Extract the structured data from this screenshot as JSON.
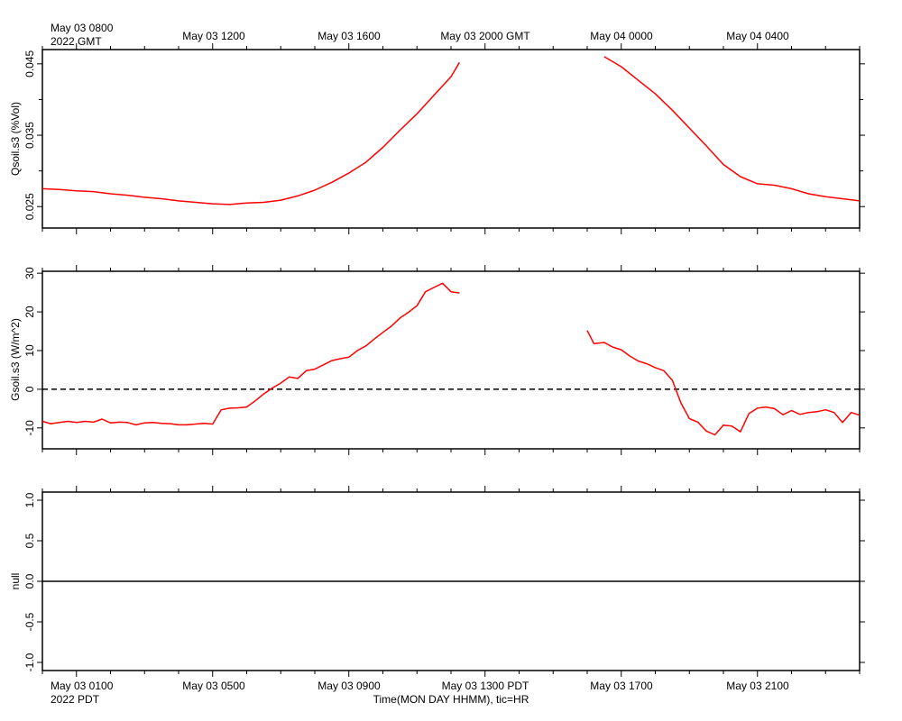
{
  "top_axis": {
    "first_label_lines": [
      "May 03 0800",
      "2022 GMT"
    ],
    "labels": [
      "May 03 1200",
      "May 03 1600",
      "May 03 2000 GMT",
      "May 04 0000",
      "May 04 0400"
    ]
  },
  "bottom_axis": {
    "first_label_lines": [
      "May 03 0100",
      "2022 PDT"
    ],
    "labels": [
      "May 03 0500",
      "May 03 0900",
      "May 03 1300 PDT",
      "May 03 1700",
      "May 03 2100"
    ],
    "title": "Time(MON DAY HHMM), tic=HR"
  },
  "colors": {
    "series": "#ff0000",
    "axis": "#000000"
  },
  "chart_data": [
    {
      "type": "line",
      "ylabel": "Qsoil.s3 (%Vol)",
      "xunit": "hours since 2022-05-03 00:00 PDT",
      "xlim": [
        0.0,
        24.0
      ],
      "ylim": [
        0.022,
        0.047
      ],
      "yticks": [
        0.025,
        0.035,
        0.045
      ],
      "ytick_labels": [
        "0.025",
        "0.035",
        "0.045"
      ],
      "series": [
        {
          "segments": [
            {
              "x": [
                0.0,
                0.5,
                1.0,
                1.5,
                2.0,
                2.5,
                3.0,
                3.5,
                4.0,
                4.5,
                5.0,
                5.5,
                6.0,
                6.5,
                7.0,
                7.5,
                8.0,
                8.5,
                9.0,
                9.5,
                10.0,
                10.5,
                11.0,
                11.5,
                12.0,
                12.25
              ],
              "y": [
                0.0275,
                0.0274,
                0.0272,
                0.0271,
                0.0268,
                0.0266,
                0.0263,
                0.0261,
                0.0258,
                0.0256,
                0.0254,
                0.0253,
                0.0255,
                0.0256,
                0.0259,
                0.0265,
                0.0273,
                0.0284,
                0.0297,
                0.0312,
                0.0333,
                0.0357,
                0.038,
                0.0406,
                0.0432,
                0.0452
              ]
            },
            {
              "x": [
                16.5,
                17.0,
                17.5,
                18.0,
                18.5,
                19.0,
                19.5,
                20.0,
                20.5,
                21.0,
                21.5,
                22.0,
                22.5,
                23.0,
                23.5,
                24.0
              ],
              "y": [
                0.046,
                0.0446,
                0.0427,
                0.0408,
                0.0385,
                0.036,
                0.0335,
                0.0309,
                0.0292,
                0.0282,
                0.028,
                0.0275,
                0.0268,
                0.0264,
                0.0261,
                0.0258
              ]
            }
          ]
        }
      ]
    },
    {
      "type": "line",
      "ylabel": "Gsoil.s3 (W/m^2)",
      "xunit": "hours since 2022-05-03 00:00 PDT",
      "xlim": [
        0.0,
        24.0
      ],
      "ylim": [
        -15.4,
        30.5
      ],
      "yticks": [
        -10,
        0,
        10,
        20,
        30
      ],
      "ytick_labels": [
        "-10",
        "0",
        "10",
        "20",
        "30"
      ],
      "reference_line": 0,
      "series": [
        {
          "segments": [
            {
              "x": [
                0.0,
                0.25,
                0.5,
                0.75,
                1.0,
                1.25,
                1.5,
                1.75,
                2.0,
                2.25,
                2.5,
                2.75,
                3.0,
                3.25,
                3.5,
                3.75,
                4.0,
                4.25,
                4.5,
                4.75,
                5.0,
                5.25,
                5.5,
                5.75,
                6.0,
                6.25,
                6.5,
                6.75,
                7.0,
                7.25,
                7.5,
                7.75,
                8.0,
                8.25,
                8.5,
                8.75,
                9.0,
                9.25,
                9.5,
                9.75,
                10.0,
                10.25,
                10.5,
                10.75,
                11.0,
                11.25,
                11.5,
                11.75,
                12.0,
                12.25
              ],
              "y": [
                -8.3,
                -8.9,
                -8.6,
                -8.3,
                -8.6,
                -8.3,
                -8.5,
                -7.7,
                -8.7,
                -8.5,
                -8.6,
                -9.2,
                -8.7,
                -8.6,
                -8.8,
                -8.9,
                -9.2,
                -9.2,
                -9.0,
                -8.8,
                -9.0,
                -5.3,
                -4.9,
                -4.8,
                -4.6,
                -3.0,
                -1.2,
                0.3,
                1.6,
                3.2,
                2.8,
                4.8,
                5.2,
                6.3,
                7.4,
                7.9,
                8.3,
                10.0,
                11.2,
                13.0,
                14.7,
                16.3,
                18.4,
                19.9,
                21.6,
                25.2,
                26.3,
                27.4,
                25.2,
                24.9
              ]
            },
            {
              "x": [
                16.0,
                16.2,
                16.5,
                16.75,
                17.0,
                17.25,
                17.5,
                17.75,
                18.0,
                18.25,
                18.5,
                18.75,
                19.0,
                19.25,
                19.5,
                19.75,
                20.0,
                20.25,
                20.5,
                20.75,
                21.0,
                21.25,
                21.5,
                21.75,
                22.0,
                22.25,
                22.5,
                22.75,
                23.0,
                23.25,
                23.5,
                23.75,
                24.0
              ],
              "y": [
                15.2,
                11.8,
                12.1,
                10.9,
                10.2,
                8.6,
                7.3,
                6.6,
                5.6,
                4.8,
                2.3,
                -3.5,
                -7.6,
                -8.5,
                -10.8,
                -11.8,
                -9.3,
                -9.5,
                -11.0,
                -6.3,
                -4.9,
                -4.6,
                -5.0,
                -6.6,
                -5.5,
                -6.5,
                -6.0,
                -5.8,
                -5.3,
                -6.0,
                -8.6,
                -6.0,
                -6.7
              ]
            }
          ]
        }
      ]
    },
    {
      "type": "line",
      "ylabel": "null",
      "xunit": "hours since 2022-05-03 00:00 PDT",
      "xlim": [
        0.0,
        24.0
      ],
      "ylim": [
        -1.1,
        1.1
      ],
      "yticks": [
        -1.0,
        -0.5,
        0.0,
        0.5,
        1.0
      ],
      "ytick_labels": [
        "-1.0",
        "-0.5",
        "0.0",
        "0.5",
        "1.0"
      ],
      "series": [
        {
          "segments": [
            {
              "x": [
                0.0,
                24.0
              ],
              "y": [
                0.0,
                0.0
              ]
            }
          ]
        }
      ]
    }
  ]
}
